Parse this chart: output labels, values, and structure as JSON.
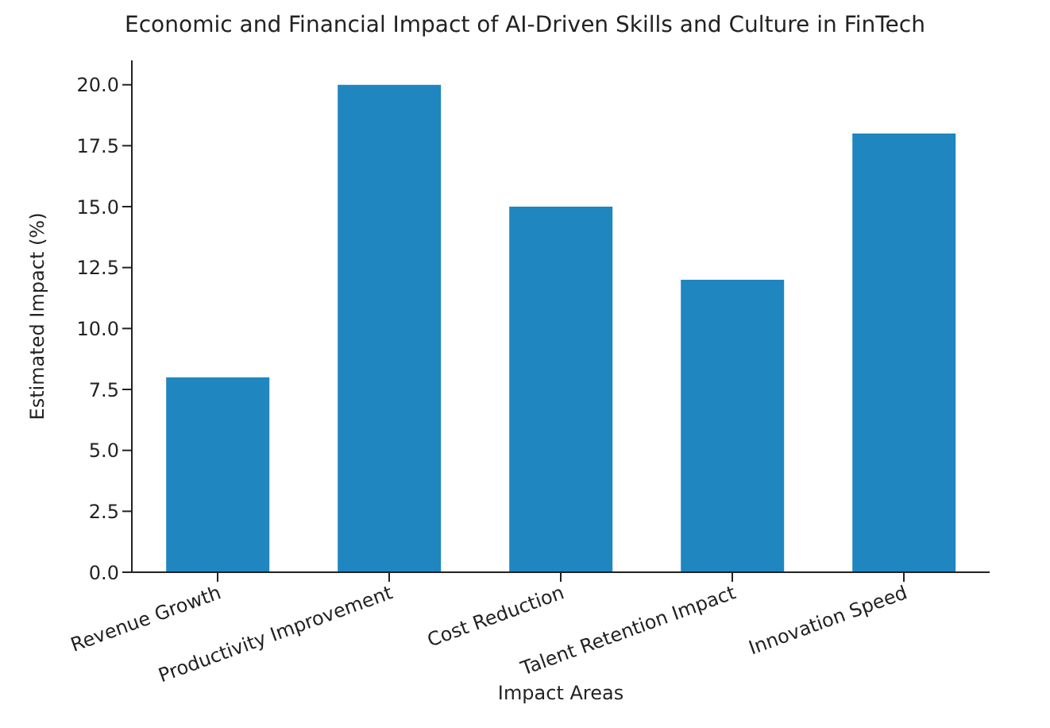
{
  "chart_data": {
    "type": "bar",
    "title": "Economic and Financial Impact of AI-Driven Skills and Culture in FinTech",
    "xlabel": "Impact Areas",
    "ylabel": "Estimated Impact (%)",
    "categories": [
      "Revenue Growth",
      "Productivity Improvement",
      "Cost Reduction",
      "Talent Retention Impact",
      "Innovation Speed"
    ],
    "values": [
      8,
      20,
      15,
      12,
      18
    ],
    "color": "#1f86c0",
    "ylim": [
      0,
      21
    ],
    "yticks": [
      {
        "value": 0,
        "label": "0.0"
      },
      {
        "value": 2.5,
        "label": "2.5"
      },
      {
        "value": 5,
        "label": "5.0"
      },
      {
        "value": 7.5,
        "label": "7.5"
      },
      {
        "value": 10,
        "label": "10.0"
      },
      {
        "value": 12.5,
        "label": "12.5"
      },
      {
        "value": 15,
        "label": "15.0"
      },
      {
        "value": 17.5,
        "label": "17.5"
      },
      {
        "value": 20,
        "label": "20.0"
      }
    ],
    "grid": false,
    "legend": false
  }
}
